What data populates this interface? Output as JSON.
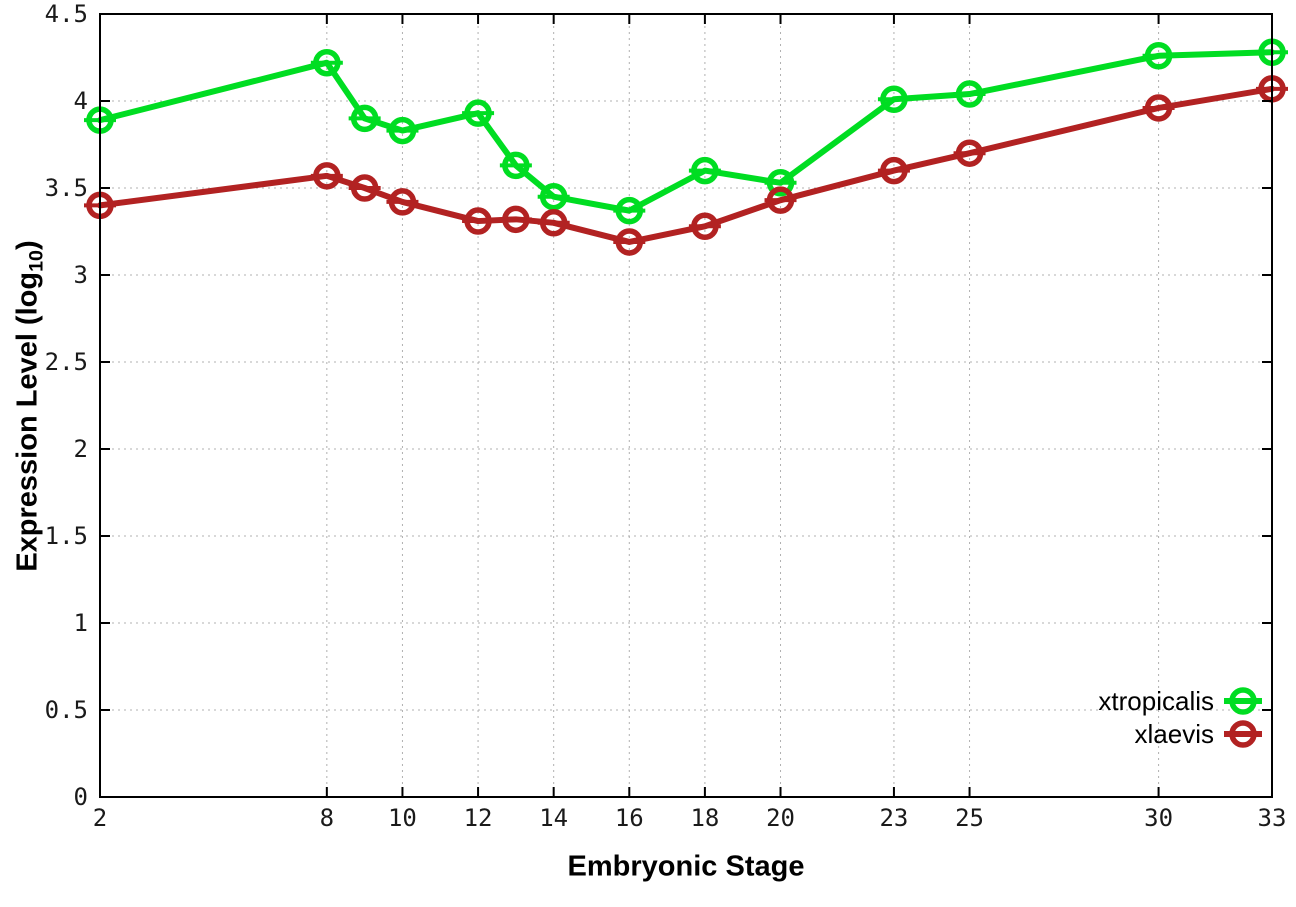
{
  "chart_data": {
    "type": "line",
    "title": "",
    "xlabel": "Embryonic Stage",
    "ylabel": "Expression Level (log10)",
    "ylabel_parts": {
      "prefix": "Expression Level (log",
      "sub": "10",
      "suffix": ")"
    },
    "xlim": [
      2,
      33
    ],
    "ylim": [
      0,
      4.5
    ],
    "grid": true,
    "grid_style": "dotted",
    "legend_position": "inside-bottom-right",
    "xticks": {
      "values": [
        2,
        8,
        10,
        12,
        14,
        16,
        18,
        20,
        23,
        25,
        30,
        33
      ],
      "labels": [
        "2",
        "8",
        "10",
        "12",
        "14",
        "16",
        "18",
        "20",
        "23",
        "25",
        "30",
        "33"
      ]
    },
    "yticks": {
      "values": [
        0,
        0.5,
        1,
        1.5,
        2,
        2.5,
        3,
        3.5,
        4,
        4.5
      ],
      "labels": [
        "0",
        "0.5",
        "1",
        "1.5",
        "2",
        "2.5",
        "3",
        "3.5",
        "4",
        "4.5"
      ]
    },
    "x": [
      2,
      8,
      9,
      10,
      12,
      13,
      14,
      16,
      18,
      20,
      23,
      25,
      30,
      33
    ],
    "series": [
      {
        "name": "xtropicalis",
        "color": "#00dd22",
        "marker": "open-circle-with-errorbar-cap",
        "values": [
          3.89,
          4.22,
          3.9,
          3.83,
          3.93,
          3.63,
          3.45,
          3.37,
          3.6,
          3.53,
          4.01,
          4.04,
          4.26,
          4.28
        ]
      },
      {
        "name": "xlaevis",
        "color": "#b22222",
        "marker": "open-circle-with-errorbar-cap",
        "values": [
          3.4,
          3.57,
          3.5,
          3.42,
          3.31,
          3.32,
          3.3,
          3.19,
          3.28,
          3.43,
          3.6,
          3.7,
          3.96,
          4.07
        ]
      }
    ],
    "colors": {
      "background": "#ffffff",
      "axis": "#000000",
      "grid": "#b0b0b0",
      "tick_text": "#1a1a1a"
    }
  }
}
